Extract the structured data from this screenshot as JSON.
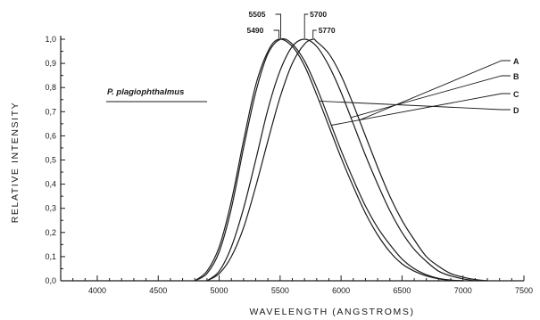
{
  "chart_data": {
    "type": "line",
    "title": "",
    "annotation": "P. plagiophthalmus",
    "xlabel": "WAVELENGTH (ANGSTROMS)",
    "ylabel": "RELATIVE INTENSITY",
    "xlim": [
      3700,
      7500
    ],
    "ylim": [
      0,
      1.0
    ],
    "x_ticks": [
      4000,
      4500,
      5000,
      5500,
      6000,
      6500,
      7000,
      7500
    ],
    "x_tick_labels": [
      "4000",
      "4500",
      "5000",
      "5500",
      "6000",
      "6500",
      "7000",
      "7500"
    ],
    "y_ticks": [
      0,
      0.1,
      0.2,
      0.3,
      0.4,
      0.5,
      0.6,
      0.7,
      0.8,
      0.9,
      1.0
    ],
    "y_tick_labels": [
      "0,0",
      "0,1",
      "0,2",
      "0,3",
      "0,4",
      "0,5",
      "0,6",
      "0,7",
      "0,8",
      "0,9",
      "1,0"
    ],
    "grid": false,
    "peak_labels": [
      "5505",
      "5490",
      "5700",
      "5770"
    ],
    "series": [
      {
        "name": "A",
        "peak": 5770,
        "x": [
          4900,
          5000,
          5100,
          5200,
          5300,
          5400,
          5500,
          5600,
          5700,
          5770,
          5800,
          5900,
          6000,
          6100,
          6200,
          6300,
          6400,
          6500,
          6600,
          6700,
          6800,
          6900,
          7000,
          7100,
          7200
        ],
        "values": [
          0.0,
          0.03,
          0.1,
          0.22,
          0.39,
          0.58,
          0.76,
          0.9,
          0.98,
          1.0,
          0.99,
          0.94,
          0.85,
          0.73,
          0.6,
          0.47,
          0.35,
          0.25,
          0.17,
          0.1,
          0.06,
          0.03,
          0.015,
          0.005,
          0.0
        ]
      },
      {
        "name": "B",
        "peak": 5700,
        "x": [
          4900,
          5000,
          5100,
          5200,
          5300,
          5400,
          5500,
          5600,
          5700,
          5800,
          5900,
          6000,
          6100,
          6200,
          6300,
          6400,
          6500,
          6600,
          6700,
          6800,
          6900,
          7000,
          7100
        ],
        "values": [
          0.0,
          0.04,
          0.14,
          0.3,
          0.5,
          0.71,
          0.87,
          0.97,
          1.0,
          0.97,
          0.89,
          0.78,
          0.65,
          0.52,
          0.4,
          0.29,
          0.2,
          0.13,
          0.08,
          0.04,
          0.02,
          0.008,
          0.0
        ]
      },
      {
        "name": "C",
        "peak": 5505,
        "x": [
          4800,
          4900,
          5000,
          5100,
          5200,
          5300,
          5400,
          5505,
          5600,
          5700,
          5800,
          5900,
          6000,
          6100,
          6200,
          6300,
          6400,
          6500,
          6600,
          6700,
          6800,
          6900,
          7000
        ],
        "values": [
          0.0,
          0.03,
          0.12,
          0.3,
          0.55,
          0.78,
          0.94,
          1.0,
          0.98,
          0.91,
          0.8,
          0.67,
          0.54,
          0.42,
          0.31,
          0.22,
          0.15,
          0.09,
          0.05,
          0.025,
          0.01,
          0.003,
          0.0
        ]
      },
      {
        "name": "D",
        "peak": 5490,
        "x": [
          4800,
          4900,
          5000,
          5100,
          5200,
          5300,
          5400,
          5490,
          5600,
          5700,
          5800,
          5900,
          6000,
          6100,
          6200,
          6300,
          6400,
          6500,
          6600,
          6700,
          6800,
          6900,
          7000
        ],
        "values": [
          0.0,
          0.04,
          0.14,
          0.33,
          0.58,
          0.81,
          0.95,
          1.0,
          0.97,
          0.89,
          0.77,
          0.64,
          0.51,
          0.39,
          0.28,
          0.19,
          0.12,
          0.07,
          0.04,
          0.02,
          0.008,
          0.002,
          0.0
        ]
      }
    ]
  }
}
